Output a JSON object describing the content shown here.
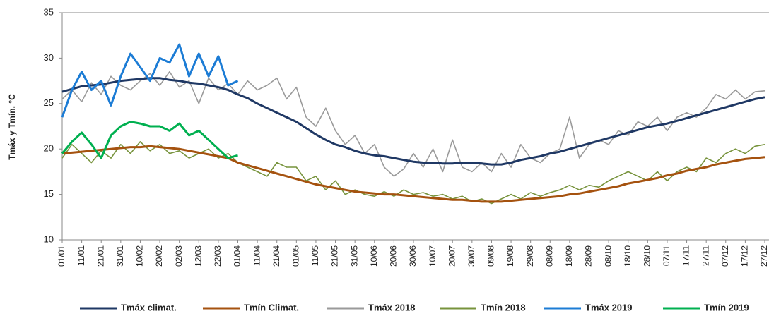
{
  "chart_data": {
    "type": "line",
    "y_label": "Tmáx y Tmín. °C",
    "categories": [
      "01/01",
      null,
      "11/01",
      null,
      "21/01",
      null,
      "31/01",
      null,
      "10/02",
      null,
      "20/02",
      null,
      "02/03",
      null,
      "12/03",
      null,
      "22/03",
      null,
      "01/04",
      null,
      "11/04",
      null,
      "21/04",
      null,
      "01/05",
      null,
      "11/05",
      null,
      "21/05",
      null,
      "31/05",
      null,
      "10/06",
      null,
      "20/06",
      null,
      "30/06",
      null,
      "10/07",
      null,
      "20/07",
      null,
      "30/07",
      null,
      "09/08",
      null,
      "19/08",
      null,
      "29/08",
      null,
      "08/09",
      null,
      "18/09",
      null,
      "28/09",
      null,
      "08/10",
      null,
      "18/10",
      null,
      "28/10",
      null,
      "07/11",
      null,
      "17/11",
      null,
      "27/11",
      null,
      "07/12",
      null,
      "17/12",
      null,
      "27/12"
    ],
    "ylim": [
      10,
      35
    ],
    "yticks": [
      10,
      15,
      20,
      25,
      30,
      35
    ],
    "grid": false,
    "legend": "bottom",
    "series": [
      {
        "name": "Tmáx climat.",
        "color": "#1f3864",
        "values": [
          26.3,
          26.6,
          26.9,
          27.0,
          27.1,
          27.3,
          27.5,
          27.6,
          27.7,
          27.8,
          27.8,
          27.6,
          27.5,
          27.3,
          27.2,
          27.0,
          26.8,
          26.5,
          26.0,
          25.6,
          25.0,
          24.5,
          24.0,
          23.5,
          23.0,
          22.3,
          21.6,
          21.0,
          20.5,
          20.2,
          19.8,
          19.5,
          19.3,
          19.2,
          19.0,
          18.8,
          18.6,
          18.5,
          18.5,
          18.4,
          18.4,
          18.5,
          18.5,
          18.4,
          18.3,
          18.3,
          18.5,
          18.8,
          19.0,
          19.2,
          19.5,
          19.7,
          20.0,
          20.3,
          20.6,
          20.9,
          21.2,
          21.5,
          21.8,
          22.1,
          22.4,
          22.6,
          22.8,
          23.1,
          23.4,
          23.7,
          24.0,
          24.3,
          24.6,
          24.9,
          25.2,
          25.5,
          25.7
        ]
      },
      {
        "name": "Tmín Climat.",
        "color": "#a5520f",
        "values": [
          19.5,
          19.6,
          19.7,
          19.8,
          19.9,
          20.0,
          20.1,
          20.2,
          20.2,
          20.3,
          20.2,
          20.1,
          20.0,
          19.8,
          19.6,
          19.4,
          19.2,
          19.0,
          18.5,
          18.2,
          17.9,
          17.6,
          17.3,
          17.0,
          16.7,
          16.4,
          16.1,
          15.9,
          15.7,
          15.5,
          15.3,
          15.2,
          15.1,
          15.0,
          15.0,
          14.9,
          14.8,
          14.7,
          14.6,
          14.5,
          14.4,
          14.4,
          14.3,
          14.2,
          14.2,
          14.2,
          14.3,
          14.4,
          14.5,
          14.6,
          14.7,
          14.8,
          15.0,
          15.1,
          15.3,
          15.5,
          15.7,
          15.9,
          16.2,
          16.4,
          16.6,
          16.8,
          17.1,
          17.3,
          17.6,
          17.8,
          18.0,
          18.3,
          18.5,
          18.7,
          18.9,
          19.0,
          19.1
        ]
      },
      {
        "name": "Tmáx 2018",
        "color": "#9a9a9a",
        "values": [
          25.5,
          26.5,
          25.2,
          27.3,
          26.0,
          28.0,
          27.0,
          26.5,
          27.5,
          28.3,
          27.0,
          28.5,
          26.8,
          27.5,
          25.0,
          27.8,
          26.5,
          27.2,
          26.0,
          27.5,
          26.5,
          27.0,
          27.8,
          25.5,
          26.8,
          23.5,
          22.5,
          24.5,
          22.0,
          20.5,
          21.5,
          19.5,
          20.5,
          18.0,
          17.0,
          17.8,
          19.5,
          18.0,
          20.0,
          17.5,
          21.0,
          18.0,
          17.5,
          18.5,
          17.5,
          19.5,
          18.0,
          20.5,
          19.0,
          18.5,
          19.5,
          20.0,
          23.5,
          19.0,
          20.5,
          21.0,
          20.5,
          22.0,
          21.5,
          23.0,
          22.5,
          23.5,
          22.0,
          23.5,
          24.0,
          23.5,
          24.5,
          26.0,
          25.5,
          26.5,
          25.5,
          26.3,
          26.4
        ]
      },
      {
        "name": "Tmín 2018",
        "color": "#77933c",
        "values": [
          19.0,
          20.5,
          19.5,
          18.5,
          19.8,
          19.0,
          20.5,
          19.5,
          20.8,
          19.8,
          20.5,
          19.5,
          19.8,
          19.0,
          19.5,
          20.0,
          19.0,
          19.5,
          18.5,
          18.0,
          17.5,
          17.0,
          18.5,
          18.0,
          18.0,
          16.5,
          17.0,
          15.5,
          16.5,
          15.0,
          15.5,
          15.0,
          14.8,
          15.3,
          14.8,
          15.5,
          15.0,
          15.2,
          14.8,
          15.0,
          14.5,
          14.8,
          14.2,
          14.5,
          14.0,
          14.5,
          15.0,
          14.5,
          15.2,
          14.8,
          15.2,
          15.5,
          16.0,
          15.5,
          16.0,
          15.8,
          16.5,
          17.0,
          17.5,
          17.0,
          16.5,
          17.5,
          16.5,
          17.5,
          18.0,
          17.5,
          19.0,
          18.5,
          19.5,
          20.0,
          19.5,
          20.3,
          20.5
        ]
      },
      {
        "name": "Tmáx 2019",
        "color": "#1c7cd5",
        "values": [
          23.5,
          26.5,
          28.5,
          26.5,
          27.5,
          24.8,
          28.0,
          30.5,
          29.0,
          27.5,
          30.0,
          29.5,
          31.5,
          28.0,
          30.5,
          28.0,
          30.2,
          27.0,
          27.5,
          null,
          null,
          null,
          null,
          null,
          null,
          null,
          null,
          null,
          null,
          null,
          null,
          null,
          null,
          null,
          null,
          null,
          null,
          null,
          null,
          null,
          null,
          null,
          null,
          null,
          null,
          null,
          null,
          null,
          null,
          null,
          null,
          null,
          null,
          null,
          null,
          null,
          null,
          null,
          null,
          null,
          null,
          null,
          null,
          null,
          null,
          null,
          null,
          null,
          null,
          null,
          null,
          null,
          null
        ]
      },
      {
        "name": "Tmín 2019",
        "color": "#00b050",
        "values": [
          19.5,
          20.8,
          21.8,
          20.5,
          19.0,
          21.5,
          22.5,
          23.0,
          22.8,
          22.5,
          22.5,
          22.0,
          22.8,
          21.5,
          22.0,
          21.0,
          20.0,
          19.0,
          19.3,
          null,
          null,
          null,
          null,
          null,
          null,
          null,
          null,
          null,
          null,
          null,
          null,
          null,
          null,
          null,
          null,
          null,
          null,
          null,
          null,
          null,
          null,
          null,
          null,
          null,
          null,
          null,
          null,
          null,
          null,
          null,
          null,
          null,
          null,
          null,
          null,
          null,
          null,
          null,
          null,
          null,
          null,
          null,
          null,
          null,
          null,
          null,
          null,
          null,
          null,
          null,
          null,
          null,
          null
        ]
      }
    ]
  }
}
